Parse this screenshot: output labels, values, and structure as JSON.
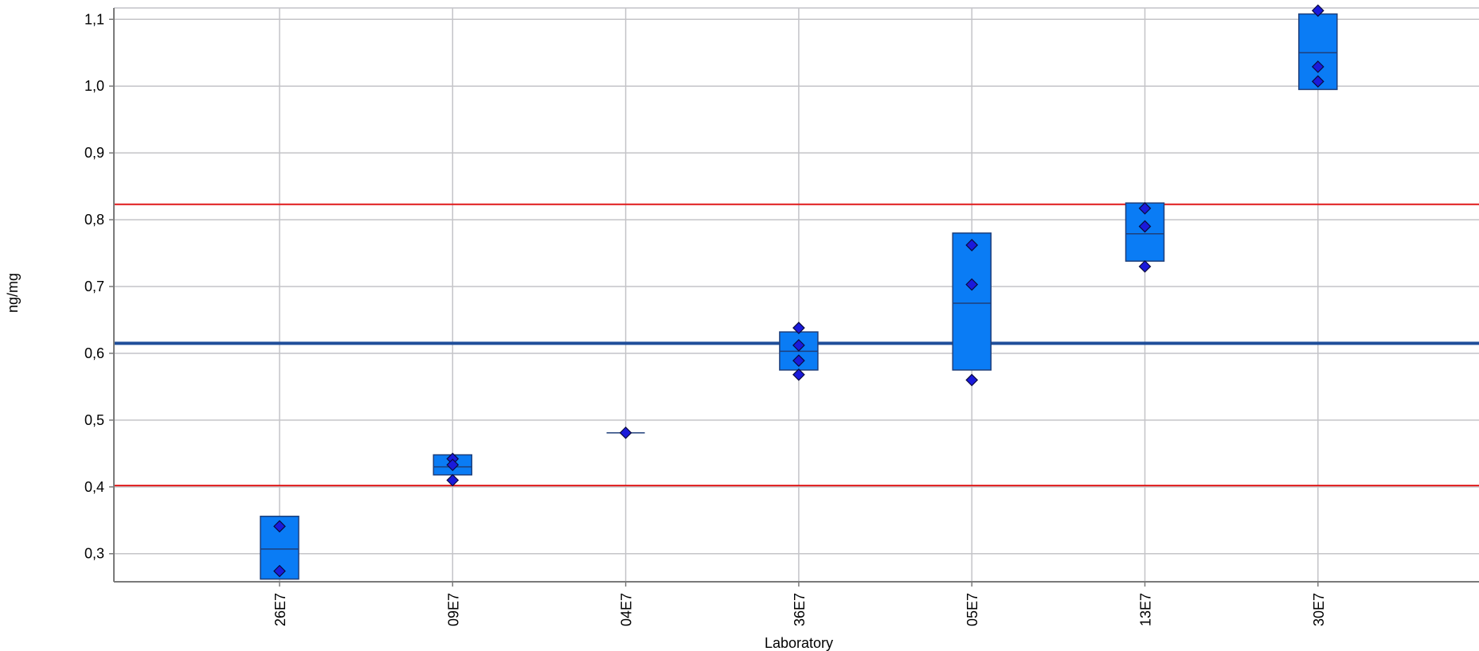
{
  "chart_data": {
    "type": "box",
    "title": "",
    "xlabel": "Laboratory",
    "ylabel": "ng/mg",
    "ylim": [
      0.258,
      1.117
    ],
    "yticks": [
      0.3,
      0.4,
      0.5,
      0.6,
      0.7,
      0.8,
      0.9,
      1.0,
      1.1
    ],
    "ytick_labels": [
      "0,3",
      "0,4",
      "0,5",
      "0,6",
      "0,7",
      "0,8",
      "0,9",
      "1,0",
      "1,1"
    ],
    "grid": true,
    "legend": "none",
    "categories": [
      "26E7",
      "09E7",
      "04E7",
      "36E7",
      "05E7",
      "13E7",
      "30E7"
    ],
    "boxes": [
      {
        "lab": "26E7",
        "low": 0.262,
        "median": 0.307,
        "high": 0.356,
        "points": [
          0.341,
          0.274
        ]
      },
      {
        "lab": "09E7",
        "low": 0.418,
        "median": 0.43,
        "high": 0.448,
        "points": [
          0.442,
          0.433,
          0.41
        ]
      },
      {
        "lab": "04E7",
        "low": 0.481,
        "median": 0.481,
        "high": 0.481,
        "points": [
          0.481
        ]
      },
      {
        "lab": "36E7",
        "low": 0.575,
        "median": 0.603,
        "high": 0.632,
        "points": [
          0.638,
          0.612,
          0.589,
          0.568
        ]
      },
      {
        "lab": "05E7",
        "low": 0.575,
        "median": 0.675,
        "high": 0.78,
        "points": [
          0.762,
          0.703,
          0.56
        ]
      },
      {
        "lab": "13E7",
        "low": 0.738,
        "median": 0.779,
        "high": 0.825,
        "points": [
          0.817,
          0.79,
          0.73
        ]
      },
      {
        "lab": "30E7",
        "low": 0.995,
        "median": 1.05,
        "high": 1.108,
        "points": [
          1.113,
          1.029,
          1.007
        ]
      }
    ],
    "reference_lines": [
      {
        "role": "assigned-value",
        "value": 0.615
      },
      {
        "role": "upper-limit",
        "value": 0.823
      },
      {
        "role": "lower-limit",
        "value": 0.402
      }
    ],
    "colors": {
      "box_fill": "#0a7cf5",
      "box_stroke": "#1f3f7a",
      "point_fill": "#1a1adb",
      "point_stroke": "#0a0a40",
      "assigned_line": "#1f4e9a",
      "limit_line": "#e0191a",
      "grid": "#c4c4c8",
      "axis": "#7a7a7a"
    }
  }
}
